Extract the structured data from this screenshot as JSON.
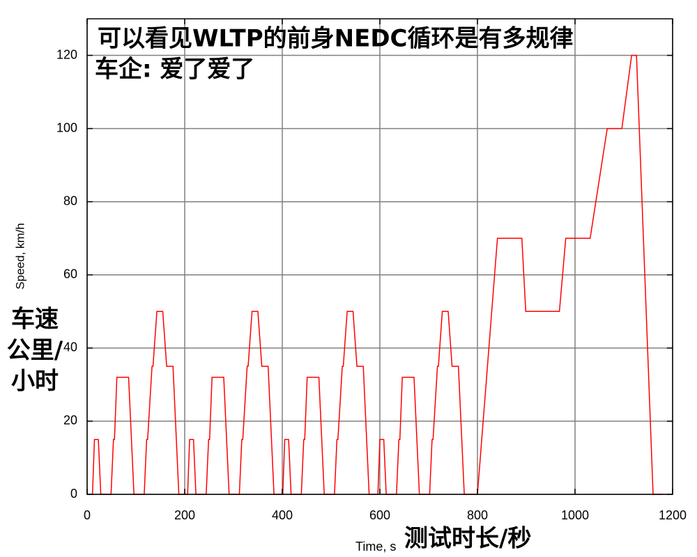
{
  "chart_data": {
    "type": "line",
    "title": "可以看见WLTP的前身NEDC循环是有多规律",
    "subtitle": "车企: 爱了爱了",
    "x_label": "Time, s",
    "x_annotation": "测试时长/秒",
    "y_label": "Speed, km/h",
    "y_annotation": [
      "车速",
      "公里/",
      "小时"
    ],
    "x": [
      0,
      11,
      15,
      23,
      28,
      49,
      54,
      56,
      61,
      85,
      96,
      117,
      122,
      124,
      133,
      135,
      143,
      155,
      163,
      176,
      188,
      195,
      206,
      210,
      218,
      223,
      244,
      249,
      251,
      256,
      280,
      291,
      312,
      317,
      319,
      328,
      330,
      338,
      350,
      358,
      371,
      383,
      390,
      401,
      405,
      413,
      418,
      439,
      444,
      446,
      451,
      475,
      486,
      507,
      512,
      514,
      523,
      525,
      533,
      545,
      553,
      566,
      578,
      585,
      596,
      600,
      608,
      613,
      634,
      639,
      641,
      646,
      670,
      681,
      702,
      707,
      709,
      718,
      720,
      728,
      740,
      748,
      761,
      773,
      780,
      800,
      841,
      891,
      899,
      968,
      981,
      1031,
      1066,
      1096,
      1116,
      1126,
      1160,
      1180
    ],
    "series": [
      {
        "color": "#ff0000",
        "values": [
          0,
          0,
          15,
          15,
          0,
          0,
          15,
          15,
          32,
          32,
          0,
          0,
          15,
          15,
          35,
          35,
          50,
          50,
          35,
          35,
          0,
          0,
          0,
          15,
          15,
          0,
          0,
          15,
          15,
          32,
          32,
          0,
          0,
          15,
          15,
          35,
          35,
          50,
          50,
          35,
          35,
          0,
          0,
          0,
          15,
          15,
          0,
          0,
          15,
          15,
          32,
          32,
          0,
          0,
          15,
          15,
          35,
          35,
          50,
          50,
          35,
          35,
          0,
          0,
          0,
          15,
          15,
          0,
          0,
          15,
          15,
          32,
          32,
          0,
          0,
          15,
          15,
          35,
          35,
          50,
          50,
          35,
          35,
          0,
          0,
          0,
          70,
          70,
          50,
          50,
          70,
          70,
          100,
          100,
          120,
          120,
          0,
          0
        ]
      }
    ],
    "xlim": [
      0,
      1200
    ],
    "xticks": [
      0,
      200,
      400,
      600,
      800,
      1000,
      1200
    ],
    "ylim": [
      0,
      130
    ],
    "yticks": [
      0,
      20,
      40,
      60,
      80,
      100,
      120
    ],
    "grid": true
  }
}
